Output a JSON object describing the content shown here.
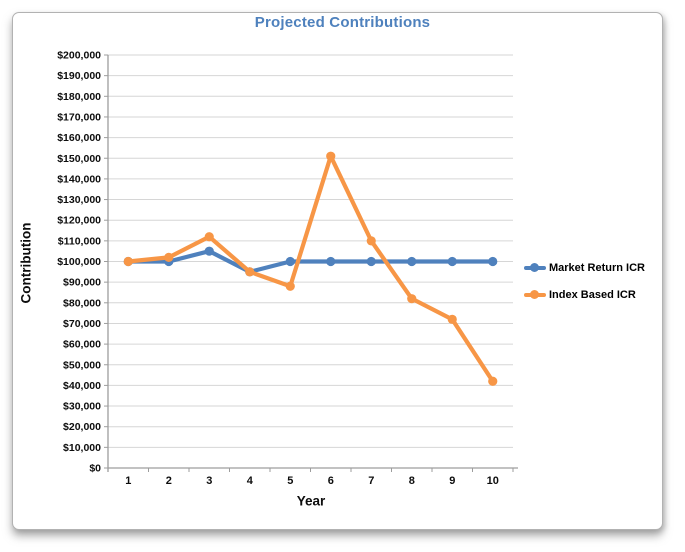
{
  "chart_data": {
    "type": "line",
    "title": "Projected Contributions",
    "xlabel": "Year",
    "ylabel": "Contribution",
    "categories": [
      "1",
      "2",
      "3",
      "4",
      "5",
      "6",
      "7",
      "8",
      "9",
      "10"
    ],
    "ylim": [
      0,
      200000
    ],
    "y_tick_step": 10000,
    "y_tick_labels": [
      "$0",
      "$10,000",
      "$20,000",
      "$30,000",
      "$40,000",
      "$50,000",
      "$60,000",
      "$70,000",
      "$80,000",
      "$90,000",
      "$100,000",
      "$110,000",
      "$120,000",
      "$130,000",
      "$140,000",
      "$150,000",
      "$160,000",
      "$170,000",
      "$180,000",
      "$190,000",
      "$200,000"
    ],
    "grid": true,
    "legend_position": "right",
    "series": [
      {
        "name": "Market Return ICR",
        "color": "#4F81BD",
        "values": [
          100000,
          100000,
          105000,
          95000,
          100000,
          100000,
          100000,
          100000,
          100000,
          100000
        ]
      },
      {
        "name": "Index Based ICR",
        "color": "#F79646",
        "values": [
          100000,
          102000,
          112000,
          95000,
          88000,
          151000,
          110000,
          82000,
          72000,
          42000
        ]
      }
    ],
    "colors": {
      "title": "#4E81BD",
      "gridline": "#D6D6D6",
      "axis": "#9D9D9D",
      "tick_text": "#0D0D0D"
    }
  }
}
